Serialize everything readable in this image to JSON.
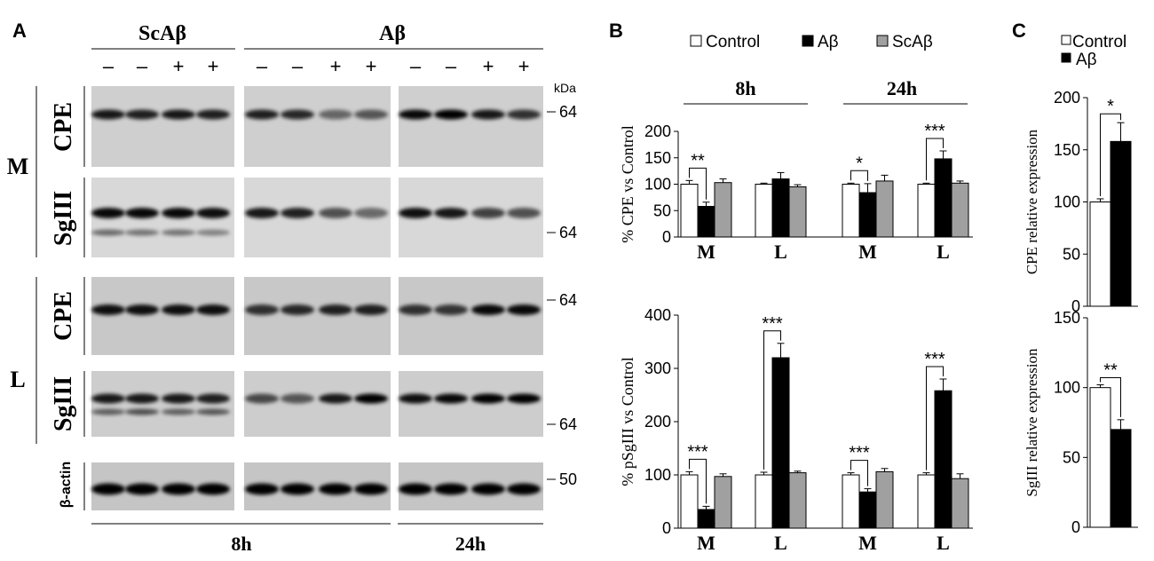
{
  "panels": {
    "A": {
      "letter": "A",
      "treatment_headers": [
        "ScAβ",
        "Aβ"
      ],
      "lane_signs": [
        "–",
        "–",
        "+",
        "+",
        "–",
        "–",
        "+",
        "+",
        "–",
        "–",
        "+",
        "+"
      ],
      "kda_label": "kDa",
      "groups": [
        {
          "letter": "M",
          "proteins": [
            "CPE",
            "SgIII"
          ]
        },
        {
          "letter": "L",
          "proteins": [
            "CPE",
            "SgIII",
            "β-actin"
          ]
        }
      ],
      "markers": {
        "m_cpe": "64",
        "m_sg": "64",
        "l_cpe": "64",
        "l_sg": "64",
        "actin": "50"
      },
      "time_labels": [
        "8h",
        "24h"
      ]
    },
    "B": {
      "letter": "B",
      "legend": [
        "Control",
        "Aβ",
        "ScAβ"
      ],
      "time_headers": [
        "8h",
        "24h"
      ]
    },
    "C": {
      "letter": "C",
      "legend": [
        "Control",
        "Aβ"
      ]
    }
  },
  "chart_data": [
    {
      "id": "B-top",
      "type": "bar",
      "ylabel": "% CPE vs Control",
      "ylim": [
        0,
        200
      ],
      "yticks": [
        0,
        50,
        100,
        150,
        200
      ],
      "categories": [
        "M",
        "L",
        "M",
        "L"
      ],
      "groups": [
        "8h",
        "8h",
        "24h",
        "24h"
      ],
      "series": [
        {
          "name": "Control",
          "color": "#ffffff",
          "values": [
            100,
            100,
            100,
            100
          ],
          "errors": [
            7,
            2,
            2,
            2
          ]
        },
        {
          "name": "Aβ",
          "color": "#000000",
          "values": [
            58,
            110,
            84,
            148
          ],
          "errors": [
            8,
            12,
            17,
            15
          ]
        },
        {
          "name": "ScAβ",
          "color": "#a0a0a0",
          "values": [
            103,
            95,
            106,
            102
          ],
          "errors": [
            7,
            4,
            11,
            4
          ]
        }
      ],
      "significance": [
        {
          "category": 0,
          "label": "**"
        },
        {
          "category": 2,
          "label": "*"
        },
        {
          "category": 3,
          "label": "***"
        }
      ]
    },
    {
      "id": "B-bottom",
      "type": "bar",
      "ylabel": "% pSgIII vs Control",
      "ylim": [
        0,
        400
      ],
      "yticks": [
        0,
        100,
        200,
        300,
        400
      ],
      "categories": [
        "M",
        "L",
        "M",
        "L"
      ],
      "series": [
        {
          "name": "Control",
          "color": "#ffffff",
          "values": [
            100,
            100,
            100,
            100
          ],
          "errors": [
            6,
            5,
            4,
            4
          ]
        },
        {
          "name": "Aβ",
          "color": "#000000",
          "values": [
            35,
            320,
            68,
            258
          ],
          "errors": [
            6,
            27,
            6,
            22
          ]
        },
        {
          "name": "ScAβ",
          "color": "#a0a0a0",
          "values": [
            97,
            104,
            106,
            93
          ],
          "errors": [
            5,
            3,
            6,
            9
          ]
        }
      ],
      "significance": [
        {
          "category": 0,
          "label": "***"
        },
        {
          "category": 1,
          "label": "***"
        },
        {
          "category": 2,
          "label": "***"
        },
        {
          "category": 3,
          "label": "***"
        }
      ]
    },
    {
      "id": "C-top",
      "type": "bar",
      "ylabel": "CPE relative expression",
      "ylim": [
        0,
        200
      ],
      "yticks": [
        0,
        50,
        100,
        150,
        200
      ],
      "series": [
        {
          "name": "Control",
          "color": "#ffffff",
          "value": 100,
          "error": 3
        },
        {
          "name": "Aβ",
          "color": "#000000",
          "value": 158,
          "error": 18
        }
      ],
      "significance": "*"
    },
    {
      "id": "C-bottom",
      "type": "bar",
      "ylabel": "SgIII relative expression",
      "ylim": [
        0,
        150
      ],
      "yticks": [
        0,
        50,
        100,
        150
      ],
      "series": [
        {
          "name": "Control",
          "color": "#ffffff",
          "value": 100,
          "error": 2
        },
        {
          "name": "Aβ",
          "color": "#000000",
          "value": 70,
          "error": 7
        }
      ],
      "significance": "**"
    }
  ]
}
